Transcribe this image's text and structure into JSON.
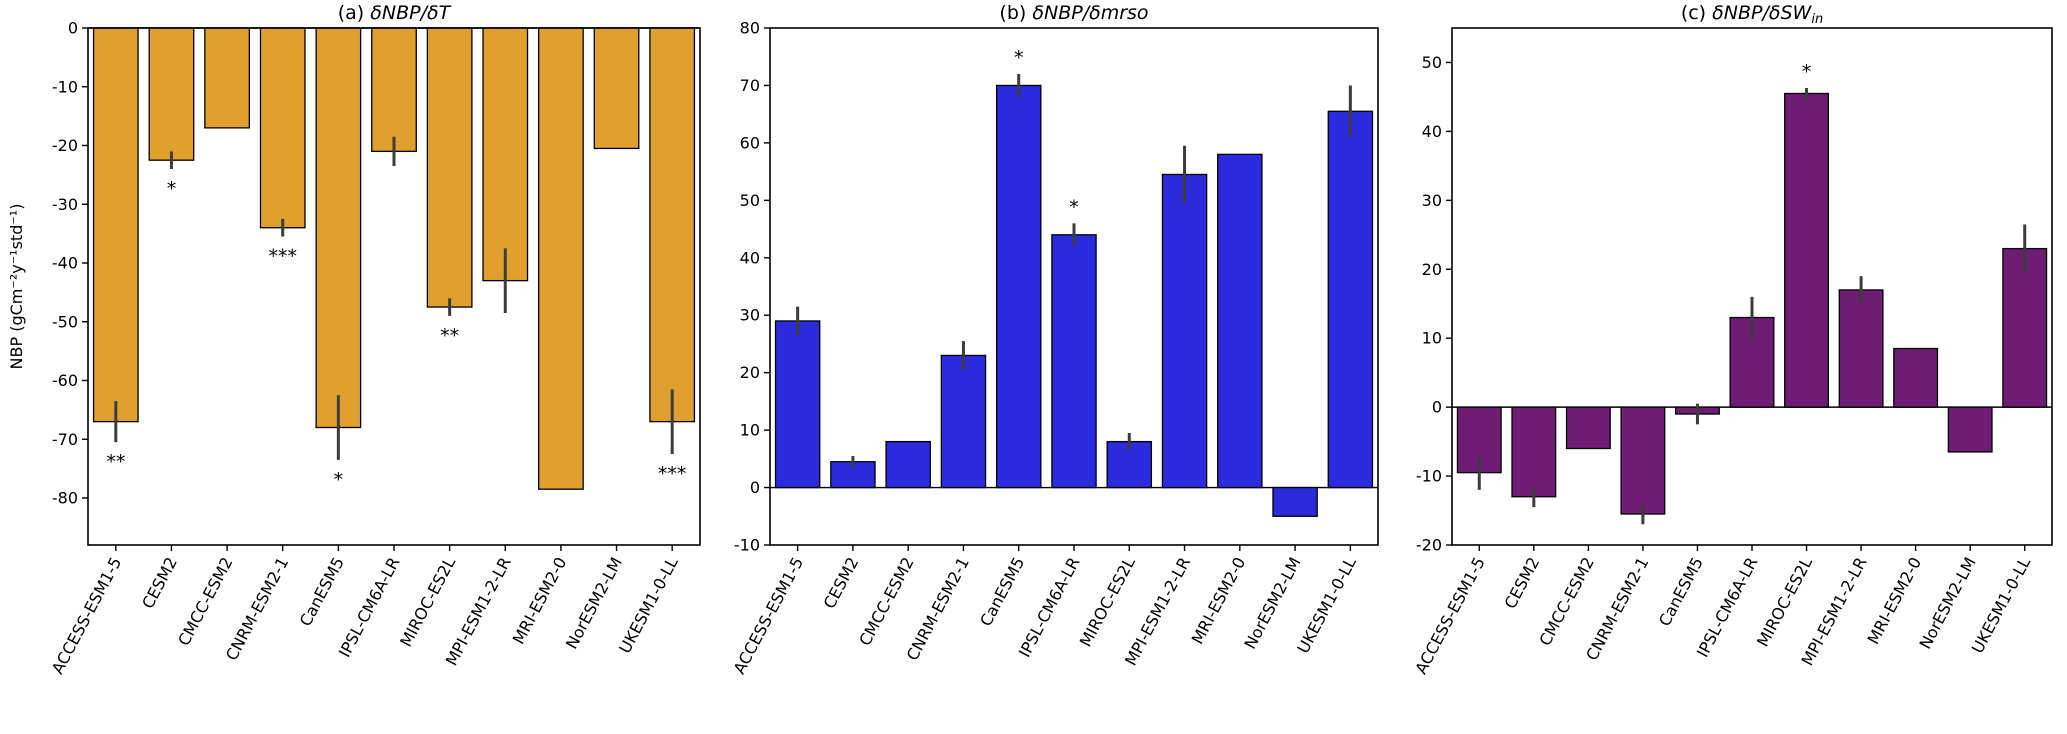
{
  "figure": {
    "background": "#ffffff",
    "ylabel": "NBP (gCm⁻²y⁻¹std⁻¹)"
  },
  "categories": [
    "ACCESS-ESM1-5",
    "CESM2",
    "CMCC-ESM2",
    "CNRM-ESM2-1",
    "CanESM5",
    "IPSL-CM6A-LR",
    "MIROC-ES2L",
    "MPI-ESM1-2-LR",
    "MRI-ESM2-0",
    "NorESM2-LM",
    "UKESM1-0-LL"
  ],
  "chart_data": [
    {
      "type": "bar",
      "title_prefix": "(a) ",
      "title_math": "δNBP/δT",
      "title_sub": "",
      "bar_color": "#E0A030",
      "error_color": "#3C3C3C",
      "ylim": [
        -88,
        0
      ],
      "yticks": [
        0,
        -10,
        -20,
        -30,
        -40,
        -50,
        -60,
        -70,
        -80
      ],
      "ylabel": "NBP (gCm⁻²y⁻¹std⁻¹)",
      "grid": false,
      "categories": [
        "ACCESS-ESM1-5",
        "CESM2",
        "CMCC-ESM2",
        "CNRM-ESM2-1",
        "CanESM5",
        "IPSL-CM6A-LR",
        "MIROC-ES2L",
        "MPI-ESM1-2-LR",
        "MRI-ESM2-0",
        "NorESM2-LM",
        "UKESM1-0-LL"
      ],
      "values": [
        -67,
        -22.5,
        -17,
        -34,
        -68,
        -21,
        -47.5,
        -43,
        -78.5,
        -20.5,
        -67
      ],
      "errors": [
        3.5,
        1.5,
        0,
        1.5,
        5.5,
        2.5,
        1.5,
        5.5,
        0,
        0,
        5.5
      ],
      "sig": [
        "**",
        "*",
        "",
        "***",
        "*",
        "",
        "**",
        "",
        "",
        "",
        "***"
      ]
    },
    {
      "type": "bar",
      "title_prefix": "(b) ",
      "title_math": "δNBP/δmrso",
      "title_sub": "",
      "bar_color": "#2B2BDD",
      "error_color": "#3C3C3C",
      "ylim": [
        -10,
        80
      ],
      "yticks": [
        -10,
        0,
        10,
        20,
        30,
        40,
        50,
        60,
        70,
        80
      ],
      "ylabel": "",
      "grid": false,
      "categories": [
        "ACCESS-ESM1-5",
        "CESM2",
        "CMCC-ESM2",
        "CNRM-ESM2-1",
        "CanESM5",
        "IPSL-CM6A-LR",
        "MIROC-ES2L",
        "MPI-ESM1-2-LR",
        "MRI-ESM2-0",
        "NorESM2-LM",
        "UKESM1-0-LL"
      ],
      "values": [
        29,
        4.5,
        8,
        23,
        70,
        44,
        8,
        54.5,
        58,
        -5,
        65.5
      ],
      "errors": [
        2.5,
        1,
        0,
        2.5,
        2,
        2,
        1.5,
        5,
        0,
        0,
        4.5
      ],
      "sig": [
        "",
        "",
        "",
        "",
        "*",
        "*",
        "",
        "",
        "",
        "",
        ""
      ]
    },
    {
      "type": "bar",
      "title_prefix": "(c) ",
      "title_math": "δNBP/δSW",
      "title_sub": "in",
      "bar_color": "#6E1C74",
      "error_color": "#3C3C3C",
      "ylim": [
        -20,
        55
      ],
      "yticks": [
        -20,
        -10,
        0,
        10,
        20,
        30,
        40,
        50
      ],
      "ylabel": "",
      "grid": false,
      "categories": [
        "ACCESS-ESM1-5",
        "CESM2",
        "CMCC-ESM2",
        "CNRM-ESM2-1",
        "CanESM5",
        "IPSL-CM6A-LR",
        "MIROC-ES2L",
        "MPI-ESM1-2-LR",
        "MRI-ESM2-0",
        "NorESM2-LM",
        "UKESM1-0-LL"
      ],
      "values": [
        -9.5,
        -13,
        -6,
        -15.5,
        -1,
        13,
        45.5,
        17,
        8.5,
        -6.5,
        23
      ],
      "errors": [
        2.5,
        1.5,
        0,
        1.5,
        1.5,
        3,
        0.8,
        2,
        0,
        0,
        3.5
      ],
      "sig": [
        "",
        "",
        "",
        "",
        "",
        "",
        "*",
        "",
        "",
        "",
        ""
      ]
    }
  ]
}
